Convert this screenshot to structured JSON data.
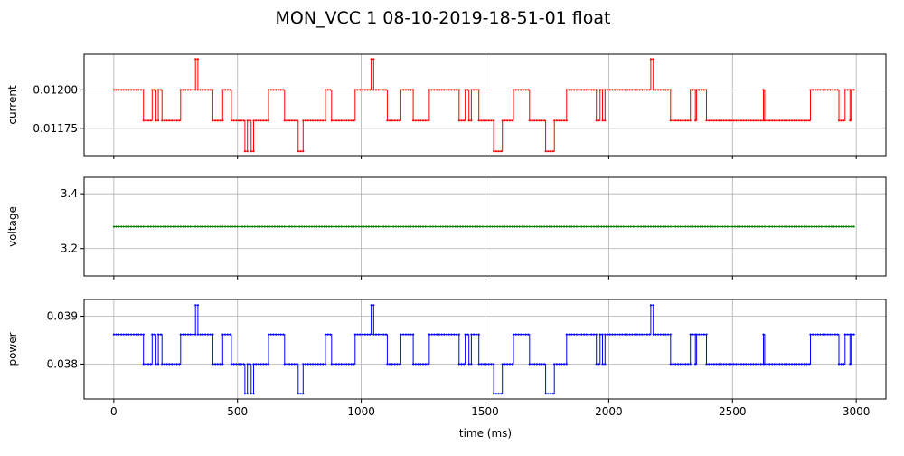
{
  "figure": {
    "title": "MON_VCC   1   08-10-2019-18-51-01   float",
    "xlabel": "time (ms)"
  },
  "chart_data": [
    {
      "type": "line",
      "ylabel": "current",
      "color": "#ff0000",
      "xlim": [
        -120,
        3120
      ],
      "ylim": [
        0.011572,
        0.012232
      ],
      "xticks": [
        0,
        500,
        1000,
        1500,
        2000,
        2500,
        3000
      ],
      "yticks": [
        0.01175,
        0.012
      ],
      "ytick_labels": [
        "0.01175",
        "0.01200"
      ],
      "grid": true,
      "segments": [
        [
          0,
          120,
          0.012
        ],
        [
          120,
          155,
          0.0118
        ],
        [
          155,
          170,
          0.012
        ],
        [
          170,
          180,
          0.0118
        ],
        [
          180,
          195,
          0.012
        ],
        [
          195,
          270,
          0.0118
        ],
        [
          270,
          330,
          0.012
        ],
        [
          330,
          340,
          0.0122
        ],
        [
          340,
          400,
          0.012
        ],
        [
          400,
          440,
          0.0118
        ],
        [
          440,
          475,
          0.012
        ],
        [
          475,
          530,
          0.0118
        ],
        [
          530,
          540,
          0.0116
        ],
        [
          540,
          555,
          0.0118
        ],
        [
          555,
          565,
          0.0116
        ],
        [
          565,
          625,
          0.0118
        ],
        [
          625,
          690,
          0.012
        ],
        [
          690,
          745,
          0.0118
        ],
        [
          745,
          765,
          0.0116
        ],
        [
          765,
          855,
          0.0118
        ],
        [
          855,
          880,
          0.012
        ],
        [
          880,
          975,
          0.0118
        ],
        [
          975,
          1040,
          0.012
        ],
        [
          1040,
          1050,
          0.0122
        ],
        [
          1050,
          1105,
          0.012
        ],
        [
          1105,
          1160,
          0.0118
        ],
        [
          1160,
          1210,
          0.012
        ],
        [
          1210,
          1275,
          0.0118
        ],
        [
          1275,
          1395,
          0.012
        ],
        [
          1395,
          1420,
          0.0118
        ],
        [
          1420,
          1435,
          0.012
        ],
        [
          1435,
          1445,
          0.0118
        ],
        [
          1445,
          1475,
          0.012
        ],
        [
          1475,
          1535,
          0.0118
        ],
        [
          1535,
          1570,
          0.0116
        ],
        [
          1570,
          1615,
          0.0118
        ],
        [
          1615,
          1680,
          0.012
        ],
        [
          1680,
          1745,
          0.0118
        ],
        [
          1745,
          1780,
          0.0116
        ],
        [
          1780,
          1830,
          0.0118
        ],
        [
          1830,
          1950,
          0.012
        ],
        [
          1950,
          1965,
          0.0118
        ],
        [
          1965,
          1975,
          0.012
        ],
        [
          1975,
          1985,
          0.0118
        ],
        [
          1985,
          2170,
          0.012
        ],
        [
          2170,
          2180,
          0.0122
        ],
        [
          2180,
          2250,
          0.012
        ],
        [
          2250,
          2330,
          0.0118
        ],
        [
          2330,
          2350,
          0.012
        ],
        [
          2350,
          2355,
          0.0118
        ],
        [
          2355,
          2395,
          0.012
        ],
        [
          2395,
          2625,
          0.0118
        ],
        [
          2625,
          2630,
          0.012
        ],
        [
          2630,
          2815,
          0.0118
        ],
        [
          2815,
          2930,
          0.012
        ],
        [
          2930,
          2955,
          0.0118
        ],
        [
          2955,
          2975,
          0.012
        ],
        [
          2975,
          2980,
          0.0118
        ],
        [
          2980,
          2995,
          0.012
        ]
      ]
    },
    {
      "type": "line",
      "ylabel": "voltage",
      "color": "#008000",
      "xlim": [
        -120,
        3120
      ],
      "ylim": [
        3.1,
        3.46
      ],
      "xticks": [
        0,
        500,
        1000,
        1500,
        2000,
        2500,
        3000
      ],
      "yticks": [
        3.2,
        3.4
      ],
      "ytick_labels": [
        "3.2",
        "3.4"
      ],
      "grid": true,
      "segments": [
        [
          0,
          2995,
          3.28
        ]
      ]
    },
    {
      "type": "line",
      "ylabel": "power",
      "color": "#0000ff",
      "xlabel": "time (ms)",
      "xlim": [
        -120,
        3120
      ],
      "ylim": [
        0.03727,
        0.03935
      ],
      "xticks": [
        0,
        500,
        1000,
        1500,
        2000,
        2500,
        3000
      ],
      "xtick_labels": [
        "0",
        "500",
        "1000",
        "1500",
        "2000",
        "2500",
        "3000"
      ],
      "yticks": [
        0.038,
        0.039
      ],
      "ytick_labels": [
        "0.038",
        "0.039"
      ],
      "grid": true,
      "segments": [
        [
          0,
          120,
          0.03862
        ],
        [
          120,
          155,
          0.038
        ],
        [
          155,
          170,
          0.03862
        ],
        [
          170,
          180,
          0.038
        ],
        [
          180,
          195,
          0.03862
        ],
        [
          195,
          270,
          0.038
        ],
        [
          270,
          330,
          0.03862
        ],
        [
          330,
          340,
          0.03923
        ],
        [
          340,
          400,
          0.03862
        ],
        [
          400,
          440,
          0.038
        ],
        [
          440,
          475,
          0.03862
        ],
        [
          475,
          530,
          0.038
        ],
        [
          530,
          540,
          0.03738
        ],
        [
          540,
          555,
          0.038
        ],
        [
          555,
          565,
          0.03738
        ],
        [
          565,
          625,
          0.038
        ],
        [
          625,
          690,
          0.03862
        ],
        [
          690,
          745,
          0.038
        ],
        [
          745,
          765,
          0.03738
        ],
        [
          765,
          855,
          0.038
        ],
        [
          855,
          880,
          0.03862
        ],
        [
          880,
          975,
          0.038
        ],
        [
          975,
          1040,
          0.03862
        ],
        [
          1040,
          1050,
          0.03923
        ],
        [
          1050,
          1105,
          0.03862
        ],
        [
          1105,
          1160,
          0.038
        ],
        [
          1160,
          1210,
          0.03862
        ],
        [
          1210,
          1275,
          0.038
        ],
        [
          1275,
          1395,
          0.03862
        ],
        [
          1395,
          1420,
          0.038
        ],
        [
          1420,
          1435,
          0.03862
        ],
        [
          1435,
          1445,
          0.038
        ],
        [
          1445,
          1475,
          0.03862
        ],
        [
          1475,
          1535,
          0.038
        ],
        [
          1535,
          1570,
          0.03738
        ],
        [
          1570,
          1615,
          0.038
        ],
        [
          1615,
          1680,
          0.03862
        ],
        [
          1680,
          1745,
          0.038
        ],
        [
          1745,
          1780,
          0.03738
        ],
        [
          1780,
          1830,
          0.038
        ],
        [
          1830,
          1950,
          0.03862
        ],
        [
          1950,
          1965,
          0.038
        ],
        [
          1965,
          1975,
          0.03862
        ],
        [
          1975,
          1985,
          0.038
        ],
        [
          1985,
          2170,
          0.03862
        ],
        [
          2170,
          2180,
          0.03923
        ],
        [
          2180,
          2250,
          0.03862
        ],
        [
          2250,
          2330,
          0.038
        ],
        [
          2330,
          2350,
          0.03862
        ],
        [
          2350,
          2355,
          0.038
        ],
        [
          2355,
          2395,
          0.03862
        ],
        [
          2395,
          2625,
          0.038
        ],
        [
          2625,
          2630,
          0.03862
        ],
        [
          2630,
          2815,
          0.038
        ],
        [
          2815,
          2930,
          0.03862
        ],
        [
          2930,
          2955,
          0.038
        ],
        [
          2955,
          2975,
          0.03862
        ],
        [
          2975,
          2980,
          0.038
        ],
        [
          2980,
          2995,
          0.03862
        ]
      ]
    }
  ]
}
